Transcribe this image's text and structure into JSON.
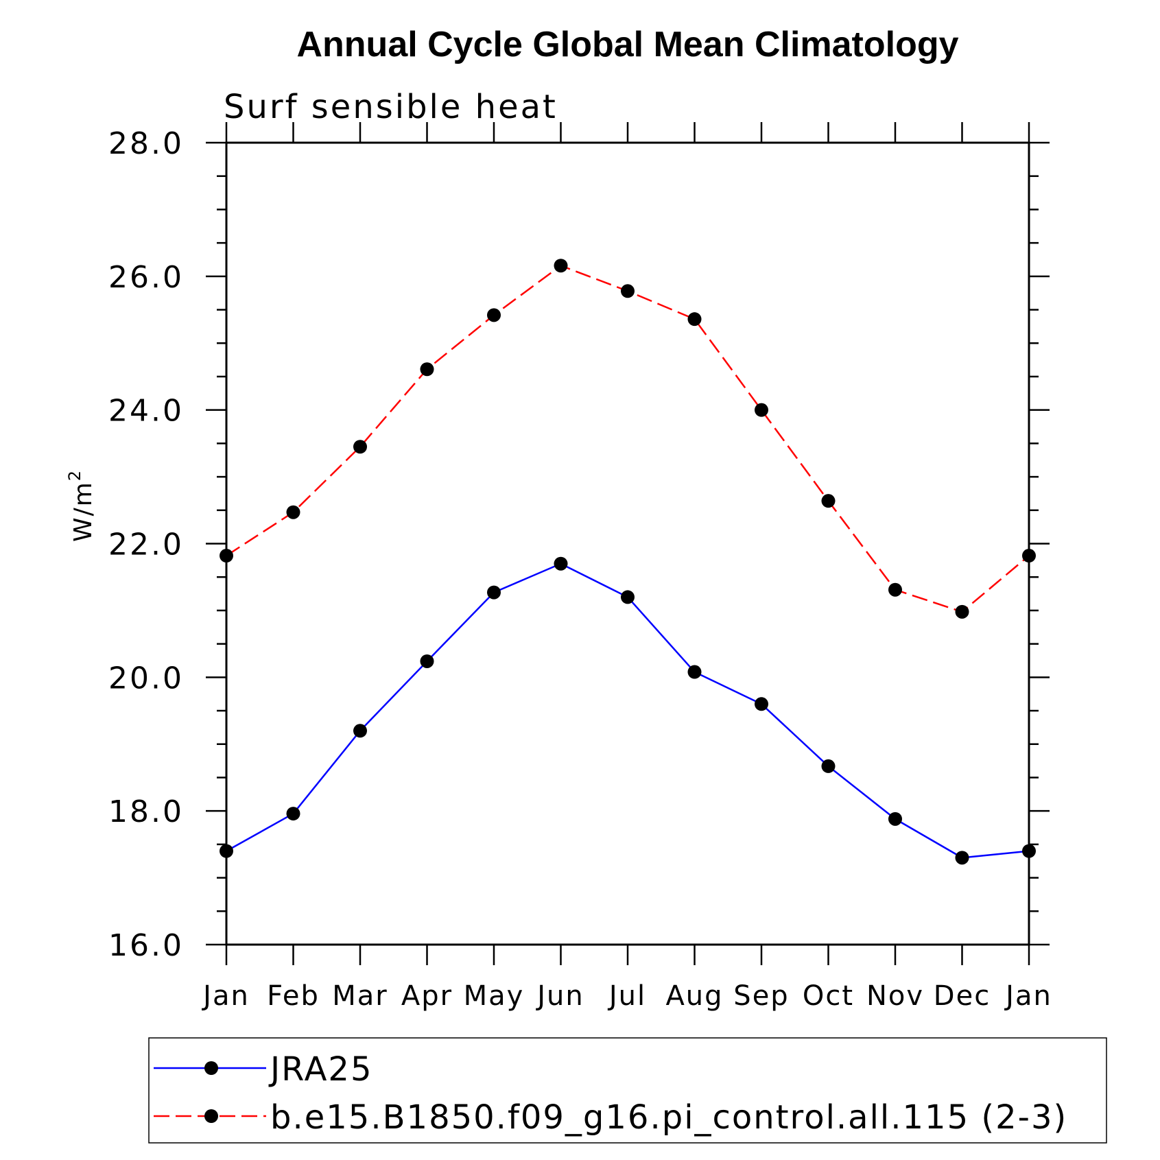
{
  "chart_data": {
    "type": "line",
    "title": "Annual Cycle Global Mean Climatology",
    "subtitle": "Surf sensible heat",
    "ylabel": "W/m",
    "ylabel_superscript": "2",
    "xlabel": "",
    "categories": [
      "Jan",
      "Feb",
      "Mar",
      "Apr",
      "May",
      "Jun",
      "Jul",
      "Aug",
      "Sep",
      "Oct",
      "Nov",
      "Dec",
      "Jan"
    ],
    "ylim": [
      16.0,
      28.0
    ],
    "yticks": [
      "16.0",
      "18.0",
      "20.0",
      "22.0",
      "24.0",
      "26.0",
      "28.0"
    ],
    "grid": false,
    "legend_position": "bottom",
    "series": [
      {
        "name": "JRA25",
        "color": "#0000ff",
        "line_style": "solid",
        "marker": "filled-circle",
        "values": [
          17.4,
          17.96,
          19.2,
          20.24,
          21.27,
          21.7,
          21.2,
          20.08,
          19.6,
          18.67,
          17.88,
          17.3,
          17.4
        ]
      },
      {
        "name": "b.e15.B1850.f09_g16.pi_control.all.115 (2-3)",
        "color": "#ff0000",
        "line_style": "dashed",
        "marker": "filled-circle",
        "values": [
          21.82,
          22.47,
          23.45,
          24.61,
          25.42,
          26.16,
          25.78,
          25.36,
          24.0,
          22.64,
          21.31,
          20.98,
          21.82
        ]
      }
    ]
  }
}
